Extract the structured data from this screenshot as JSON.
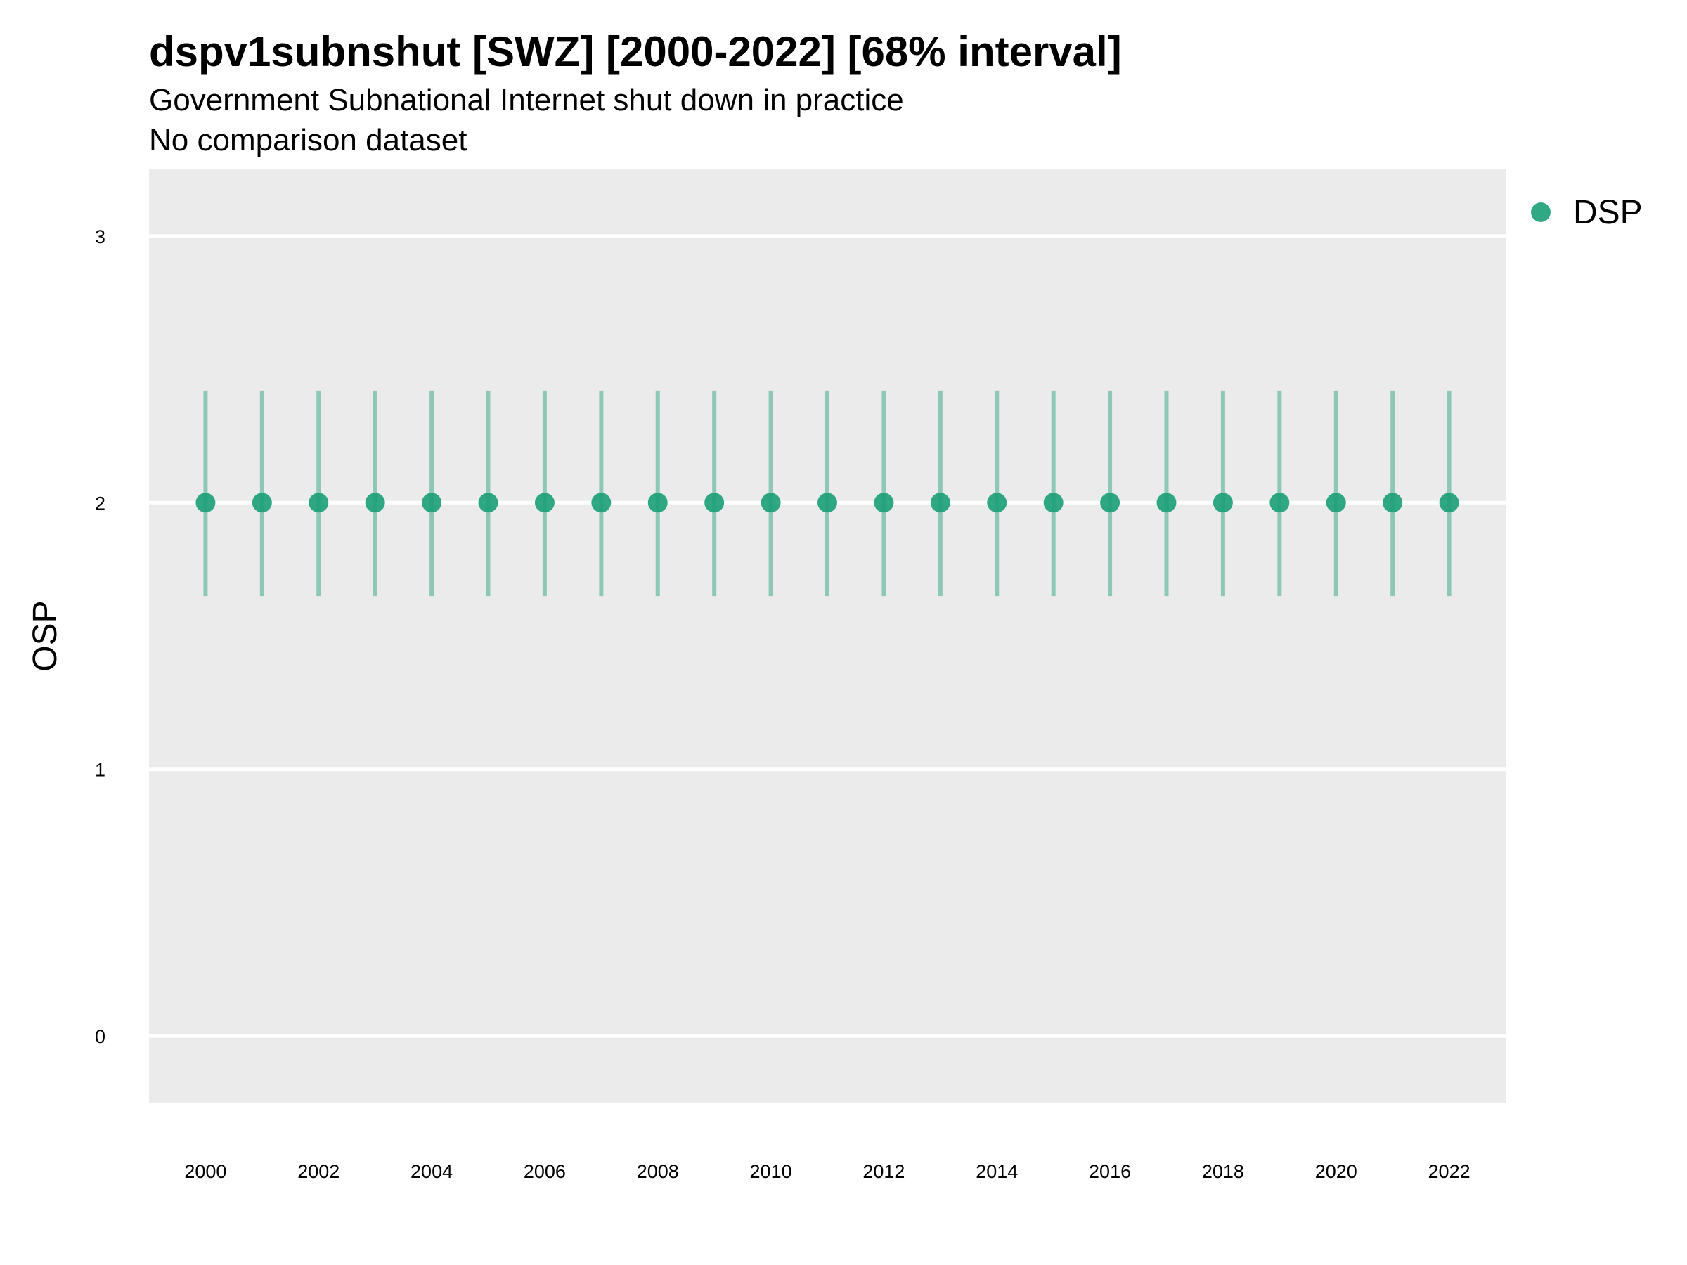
{
  "chart_data": {
    "type": "scatter",
    "title": "dspv1subnshut [SWZ] [2000-2022] [68% interval]",
    "subtitle": "Government Subnational Internet shut down in practice",
    "subtitle2": "No comparison dataset",
    "xlabel": "",
    "ylabel": "OSP",
    "xlim": [
      1999.0,
      2023.0
    ],
    "ylim": [
      -0.25,
      3.25
    ],
    "x_ticks": [
      "2000",
      "2002",
      "2004",
      "2006",
      "2008",
      "2010",
      "2012",
      "2014",
      "2016",
      "2018",
      "2020",
      "2022"
    ],
    "y_ticks": [
      "0",
      "1",
      "2",
      "3"
    ],
    "grid": true,
    "legend_position": "top-right",
    "series": [
      {
        "name": "DSP",
        "color": "#1B9E77",
        "x": [
          2000,
          2001,
          2002,
          2003,
          2004,
          2005,
          2006,
          2007,
          2008,
          2009,
          2010,
          2011,
          2012,
          2013,
          2014,
          2015,
          2016,
          2017,
          2018,
          2019,
          2020,
          2021,
          2022
        ],
        "y": [
          2,
          2,
          2,
          2,
          2,
          2,
          2,
          2,
          2,
          2,
          2,
          2,
          2,
          2,
          2,
          2,
          2,
          2,
          2,
          2,
          2,
          2,
          2
        ],
        "lower": [
          1.65,
          1.65,
          1.65,
          1.65,
          1.65,
          1.65,
          1.65,
          1.65,
          1.65,
          1.65,
          1.65,
          1.65,
          1.65,
          1.65,
          1.65,
          1.65,
          1.65,
          1.65,
          1.65,
          1.65,
          1.65,
          1.65,
          1.65
        ],
        "upper": [
          2.42,
          2.42,
          2.42,
          2.42,
          2.42,
          2.42,
          2.42,
          2.42,
          2.42,
          2.42,
          2.42,
          2.42,
          2.42,
          2.42,
          2.42,
          2.42,
          2.42,
          2.42,
          2.42,
          2.42,
          2.42,
          2.42,
          2.42
        ]
      }
    ]
  }
}
